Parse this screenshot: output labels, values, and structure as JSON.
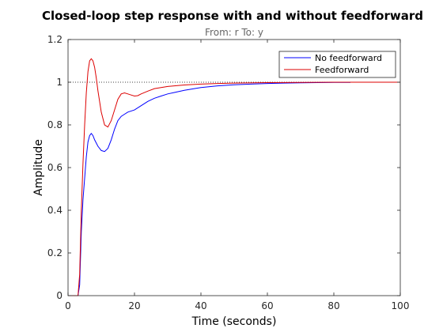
{
  "chart_data": {
    "type": "line",
    "title": "Closed-loop step response with and without feedforward",
    "subtitle": "From: r  To: y",
    "xlabel": "Time (seconds)",
    "ylabel": "Amplitude",
    "xlim": [
      0,
      100
    ],
    "ylim": [
      0,
      1.2
    ],
    "xticks": [
      0,
      20,
      40,
      60,
      80,
      100
    ],
    "yticks": [
      0,
      0.2,
      0.4,
      0.6,
      0.8,
      1,
      1.2
    ],
    "xtick_labels": [
      "0",
      "20",
      "40",
      "60",
      "80",
      "100"
    ],
    "ytick_labels": [
      "0",
      "0.2",
      "0.4",
      "0.6",
      "0.8",
      "1",
      "1.2"
    ],
    "grid": false,
    "legend_position": "top-right",
    "reference_line": {
      "y": 1,
      "style": "dotted",
      "color": "#000000"
    },
    "series": [
      {
        "name": "No feedforward",
        "color": "#0000ff",
        "x": [
          0,
          3,
          3.5,
          4,
          4.5,
          5,
          5.5,
          6,
          6.5,
          7,
          7.5,
          8,
          9,
          10,
          11,
          12,
          13,
          14,
          15,
          16,
          17,
          18,
          20,
          22,
          24,
          26,
          28,
          30,
          32,
          35,
          38,
          40,
          45,
          50,
          55,
          60,
          65,
          70,
          75,
          80,
          85
        ],
        "y": [
          0,
          0,
          0.05,
          0.3,
          0.45,
          0.55,
          0.65,
          0.72,
          0.75,
          0.76,
          0.75,
          0.73,
          0.7,
          0.68,
          0.675,
          0.69,
          0.73,
          0.78,
          0.82,
          0.84,
          0.85,
          0.86,
          0.87,
          0.89,
          0.91,
          0.925,
          0.935,
          0.945,
          0.952,
          0.962,
          0.97,
          0.975,
          0.983,
          0.988,
          0.991,
          0.994,
          0.996,
          0.997,
          0.998,
          0.999,
          0.999
        ]
      },
      {
        "name": "Feedforward",
        "color": "#dd0000",
        "x": [
          0,
          3,
          3.5,
          4,
          4.5,
          5,
          5.5,
          6,
          6.5,
          7,
          7.5,
          8,
          8.5,
          9,
          10,
          11,
          12,
          13,
          14,
          15,
          16,
          17,
          18,
          19,
          20,
          21,
          22,
          24,
          26,
          28,
          30,
          35,
          40,
          45,
          50,
          60,
          70,
          80,
          90,
          100
        ],
        "y": [
          0,
          0,
          0.1,
          0.4,
          0.62,
          0.8,
          0.95,
          1.05,
          1.1,
          1.11,
          1.1,
          1.07,
          1.02,
          0.96,
          0.86,
          0.8,
          0.79,
          0.82,
          0.87,
          0.92,
          0.945,
          0.95,
          0.945,
          0.94,
          0.935,
          0.937,
          0.945,
          0.958,
          0.97,
          0.975,
          0.98,
          0.987,
          0.991,
          0.994,
          0.996,
          0.998,
          0.999,
          1.0,
          1.0,
          1.0
        ]
      }
    ]
  }
}
